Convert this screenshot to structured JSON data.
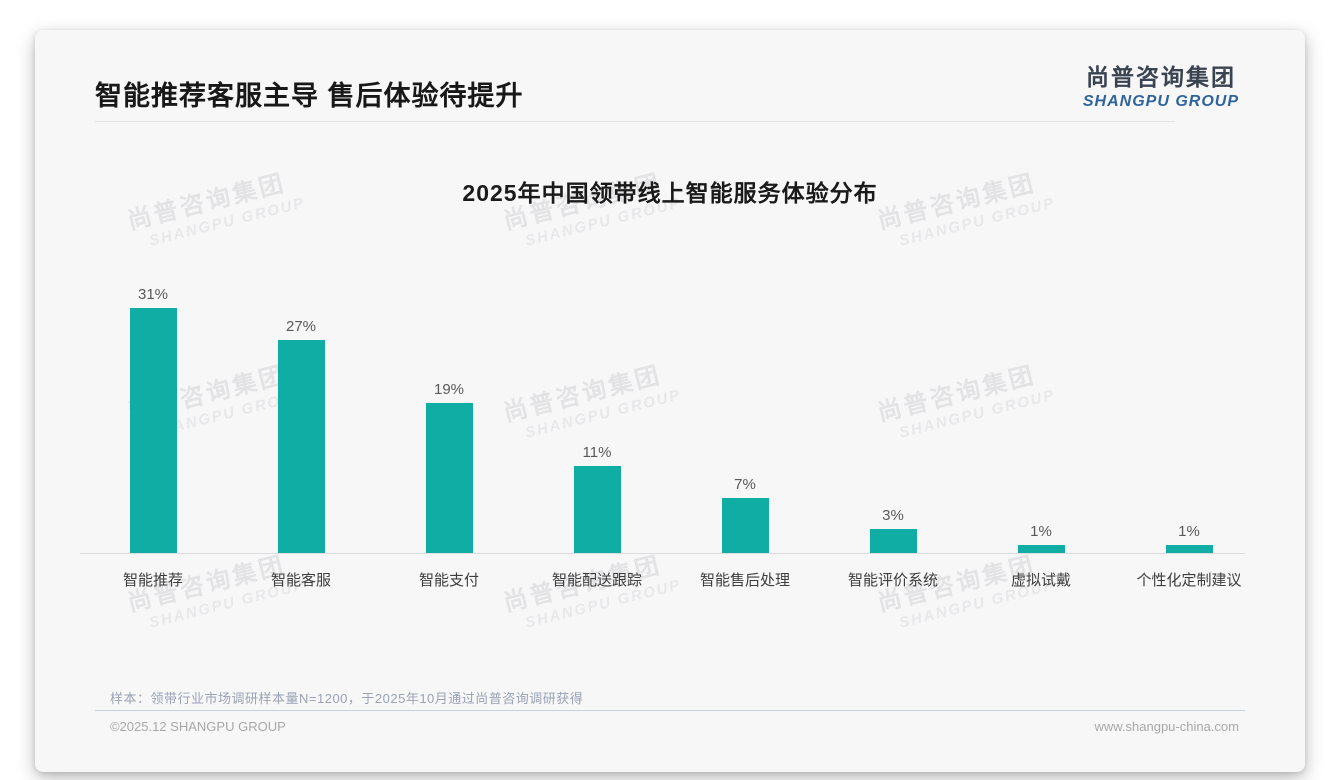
{
  "page": {
    "header": {
      "title": "智能推荐客服主导 售后体验待提升",
      "logo": {
        "cn": "尚普咨询集团",
        "en": "SHANGPU GROUP"
      }
    },
    "watermark": {
      "cn": "尚普咨询集团",
      "en": "SHANGPU GROUP"
    },
    "footer": {
      "note": "样本：领带行业市场调研样本量N=1200，于2025年10月通过尚普咨询调研获得",
      "copyright": "©2025.12 SHANGPU GROUP",
      "website": "www.shangpu-china.com"
    },
    "colors": {
      "bar": "#10ada5",
      "logo_blue": "#2f639c",
      "card_background": "#f7f7f8"
    }
  },
  "chart_data": {
    "type": "bar",
    "title": "2025年中国领带线上智能服务体验分布",
    "categories": [
      "智能推荐",
      "智能客服",
      "智能支付",
      "智能配送跟踪",
      "智能售后处理",
      "智能评价系统",
      "虚拟试戴",
      "个性化定制建议"
    ],
    "values": [
      31,
      27,
      19,
      11,
      7,
      3,
      1,
      1
    ],
    "value_labels": [
      "31%",
      "27%",
      "19%",
      "11%",
      "7%",
      "3%",
      "1%",
      "1%"
    ],
    "unit": "%",
    "ylim": [
      0,
      33
    ],
    "grid": false,
    "legend": false,
    "bar_color": "#10ada5"
  }
}
